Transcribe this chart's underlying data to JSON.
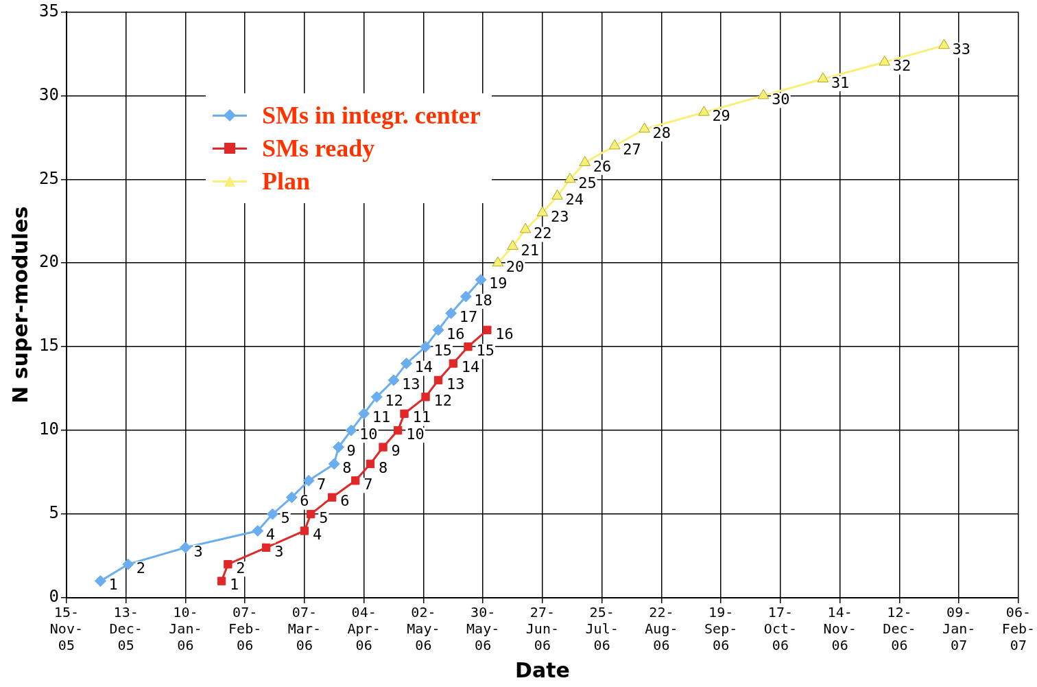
{
  "chart_data": {
    "type": "line",
    "xlabel": "Date",
    "ylabel": "N super-modules",
    "xlim": [
      "2005-11-15",
      "2007-02-06"
    ],
    "xticks": [
      {
        "value": "2005-11-15",
        "label": "15-Nov-05"
      },
      {
        "value": "2005-12-13",
        "label": "13-Dec-05"
      },
      {
        "value": "2006-01-10",
        "label": "10-Jan-06"
      },
      {
        "value": "2006-02-07",
        "label": "07-Feb-06"
      },
      {
        "value": "2006-03-07",
        "label": "07-Mar-06"
      },
      {
        "value": "2006-04-04",
        "label": "04-Apr-06"
      },
      {
        "value": "2006-05-02",
        "label": "02-May-06"
      },
      {
        "value": "2006-05-30",
        "label": "30-May-06"
      },
      {
        "value": "2006-06-27",
        "label": "27-Jun-06"
      },
      {
        "value": "2006-07-25",
        "label": "25-Jul-06"
      },
      {
        "value": "2006-08-22",
        "label": "22-Aug-06"
      },
      {
        "value": "2006-09-19",
        "label": "19-Sep-06"
      },
      {
        "value": "2006-10-17",
        "label": "17-Oct-06"
      },
      {
        "value": "2006-11-14",
        "label": "14-Nov-06"
      },
      {
        "value": "2006-12-12",
        "label": "12-Dec-06"
      },
      {
        "value": "2007-01-09",
        "label": "09-Jan-07"
      },
      {
        "value": "2007-02-06",
        "label": "06-Feb-07"
      }
    ],
    "ylim": [
      0,
      35
    ],
    "yticks": [
      0,
      5,
      10,
      15,
      20,
      25,
      30,
      35
    ],
    "grid": true,
    "legend": "top left",
    "data_labels": true,
    "series": [
      {
        "name": "SMs in integr. center",
        "color": "#6aaef0",
        "marker": "diamond",
        "x": [
          "2005-12-01",
          "2005-12-14",
          "2006-01-10",
          "2006-02-13",
          "2006-02-20",
          "2006-03-01",
          "2006-03-09",
          "2006-03-21",
          "2006-03-23",
          "2006-03-29",
          "2006-04-04",
          "2006-04-10",
          "2006-04-18",
          "2006-04-24",
          "2006-05-03",
          "2006-05-09",
          "2006-05-15",
          "2006-05-22",
          "2006-05-29"
        ],
        "values": [
          1,
          2,
          3,
          4,
          5,
          6,
          7,
          8,
          9,
          10,
          11,
          12,
          13,
          14,
          15,
          16,
          17,
          18,
          19
        ]
      },
      {
        "name": "SMs ready",
        "color": "#e02828",
        "marker": "square",
        "x": [
          "2006-01-27",
          "2006-01-30",
          "2006-02-17",
          "2006-03-07",
          "2006-03-10",
          "2006-03-20",
          "2006-03-31",
          "2006-04-07",
          "2006-04-13",
          "2006-04-20",
          "2006-04-23",
          "2006-05-03",
          "2006-05-09",
          "2006-05-16",
          "2006-05-23",
          "2006-06-01"
        ],
        "values": [
          1,
          2,
          3,
          4,
          5,
          6,
          7,
          8,
          9,
          10,
          11,
          12,
          13,
          14,
          15,
          16
        ]
      },
      {
        "name": "Plan",
        "color": "#f8f078",
        "marker": "triangle",
        "x": [
          "2006-06-06",
          "2006-06-13",
          "2006-06-19",
          "2006-06-27",
          "2006-07-04",
          "2006-07-10",
          "2006-07-17",
          "2006-07-31",
          "2006-08-14",
          "2006-09-11",
          "2006-10-09",
          "2006-11-06",
          "2006-12-05",
          "2007-01-02"
        ],
        "values": [
          20,
          21,
          22,
          23,
          24,
          25,
          26,
          27,
          28,
          29,
          30,
          31,
          32,
          33
        ]
      }
    ]
  }
}
